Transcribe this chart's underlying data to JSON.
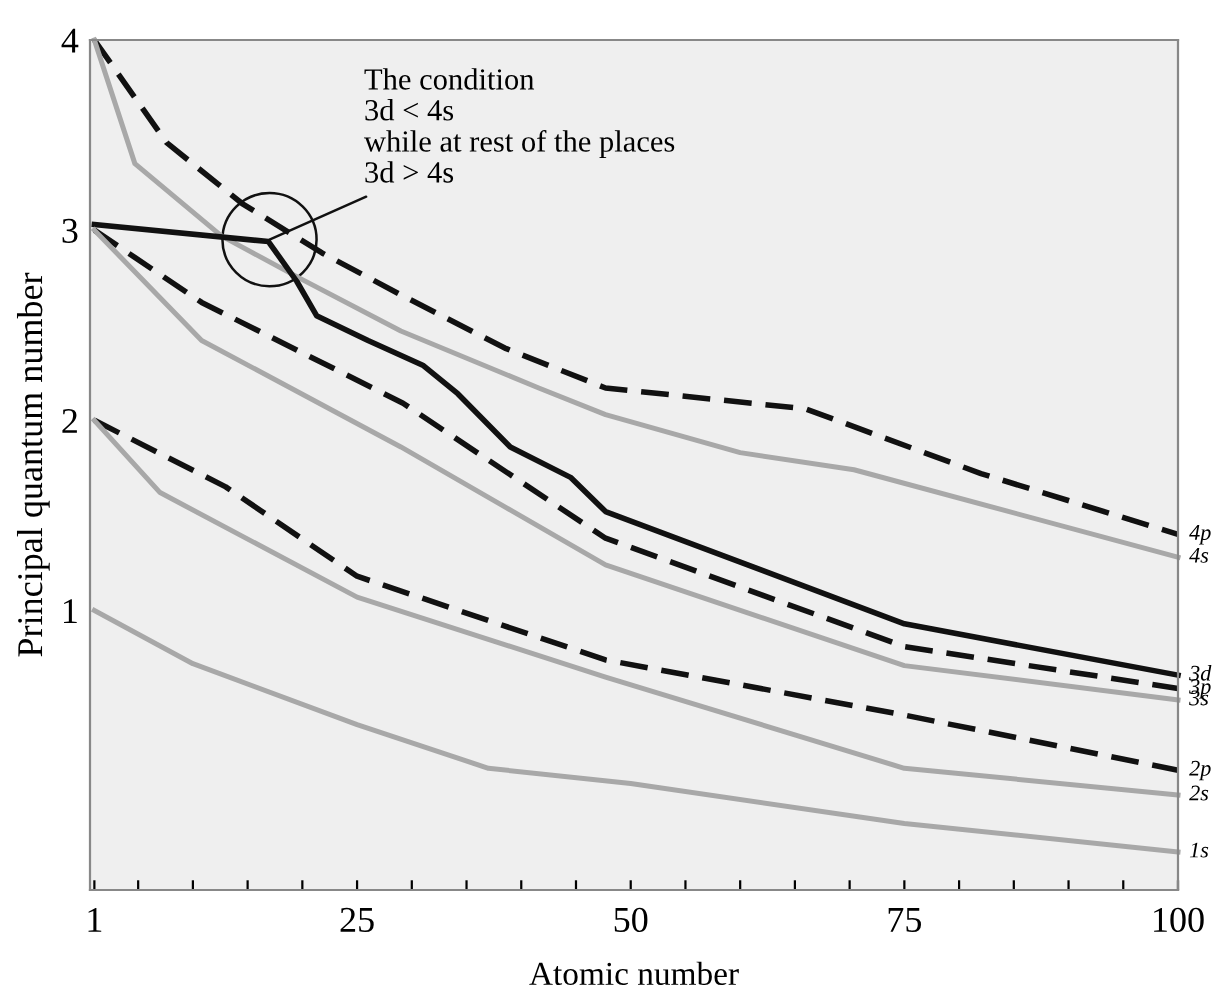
{
  "chart_data": {
    "type": "line",
    "xlabel": "Atomic number",
    "ylabel": "Principal quantum number",
    "xlim": [
      0.6,
      100
    ],
    "ylim": [
      -0.47,
      4
    ],
    "xticks": [
      1,
      {
        "value": 5,
        "label": null
      },
      {
        "value": 10,
        "label": null
      },
      {
        "value": 15,
        "label": null
      },
      {
        "value": 20,
        "label": null
      },
      25,
      {
        "value": 30,
        "label": null
      },
      {
        "value": 35,
        "label": null
      },
      {
        "value": 40,
        "label": null
      },
      {
        "value": 45,
        "label": null
      },
      50,
      {
        "value": 55,
        "label": null
      },
      {
        "value": 60,
        "label": null
      },
      {
        "value": 65,
        "label": null
      },
      {
        "value": 70,
        "label": null
      },
      75,
      {
        "value": 80,
        "label": null
      },
      {
        "value": 85,
        "label": null
      },
      {
        "value": 90,
        "label": null
      },
      {
        "value": 95,
        "label": null
      },
      100
    ],
    "yticks": [
      1,
      2,
      3,
      4
    ],
    "grid": false,
    "legend": false,
    "marker": "none",
    "series": [
      {
        "name": "4p",
        "color": "#111111",
        "line_style": "dashed",
        "x": [
          1,
          7.6,
          14.5,
          21.8,
          29,
          38.5,
          47.7,
          66,
          82,
          100
        ],
        "values": [
          4,
          3.46,
          3.14,
          2.88,
          2.66,
          2.38,
          2.17,
          2.06,
          1.72,
          1.4
        ]
      },
      {
        "name": "4s",
        "color": "#a8a8a8",
        "line_style": "solid",
        "x": [
          1,
          4.7,
          12.6,
          20,
          29,
          41.6,
          47.7,
          60,
          70.4,
          100
        ],
        "values": [
          4,
          3.35,
          2.97,
          2.74,
          2.47,
          2.17,
          2.03,
          1.83,
          1.74,
          1.28
        ]
      },
      {
        "name": "3d",
        "color": "#111111",
        "line_style": "solid",
        "x": [
          1,
          16.9,
          19.5,
          21.3,
          26,
          31,
          34.2,
          39,
          44.5,
          47.7,
          75,
          100
        ],
        "values": [
          3.03,
          2.94,
          2.73,
          2.55,
          2.42,
          2.29,
          2.14,
          1.86,
          1.7,
          1.52,
          0.93,
          0.66
        ]
      },
      {
        "name": "3p",
        "color": "#111111",
        "line_style": "dashed",
        "x": [
          1,
          10.8,
          29.2,
          47.7,
          75,
          100
        ],
        "values": [
          3,
          2.62,
          2.09,
          1.38,
          0.81,
          0.59
        ]
      },
      {
        "name": "3s",
        "color": "#a8a8a8",
        "line_style": "solid",
        "x": [
          1,
          10.8,
          29,
          47.7,
          75,
          100
        ],
        "values": [
          3,
          2.42,
          1.86,
          1.24,
          0.71,
          0.53
        ]
      },
      {
        "name": "2p",
        "color": "#111111",
        "line_style": "dashed",
        "x": [
          1,
          13,
          25,
          47.7,
          75,
          100
        ],
        "values": [
          2,
          1.65,
          1.18,
          0.74,
          0.45,
          0.16
        ]
      },
      {
        "name": "2s",
        "color": "#a8a8a8",
        "line_style": "solid",
        "x": [
          1,
          7,
          25,
          47.7,
          75,
          100
        ],
        "values": [
          2,
          1.62,
          1.07,
          0.65,
          0.17,
          0.03
        ]
      },
      {
        "name": "1s",
        "color": "#a8a8a8",
        "line_style": "solid",
        "x": [
          1,
          10,
          25,
          37,
          50,
          75,
          100
        ],
        "values": [
          1,
          0.72,
          0.4,
          0.17,
          0.09,
          -0.12,
          -0.27
        ]
      }
    ],
    "annotations": [
      {
        "text": "The condition\n3d < 4s\nwhile at rest of the places\n3d > 4s",
        "x": 17,
        "y": 2.95
      }
    ]
  }
}
